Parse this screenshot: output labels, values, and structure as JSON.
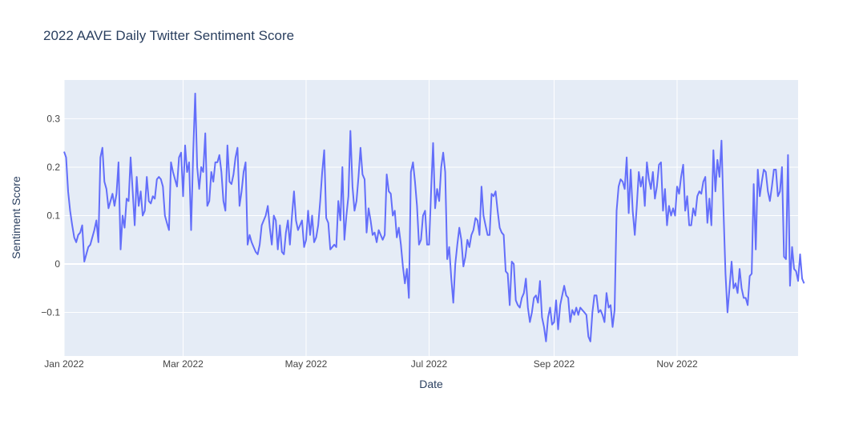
{
  "chart_data": {
    "type": "line",
    "title": "2022 AAVE Daily Twitter Sentiment Score",
    "xlabel": "Date",
    "ylabel": "Sentiment Score",
    "xlim": [
      "2022-01-01",
      "2022-12-31"
    ],
    "ylim": [
      -0.19,
      0.38
    ],
    "x_ticks": [
      {
        "date": "2022-01-01",
        "label": "Jan 2022"
      },
      {
        "date": "2022-03-01",
        "label": "Mar 2022"
      },
      {
        "date": "2022-05-01",
        "label": "May 2022"
      },
      {
        "date": "2022-07-01",
        "label": "Jul 2022"
      },
      {
        "date": "2022-09-01",
        "label": "Sep 2022"
      },
      {
        "date": "2022-11-01",
        "label": "Nov 2022"
      }
    ],
    "y_ticks": [
      {
        "value": -0.1,
        "label": "−0.1"
      },
      {
        "value": 0,
        "label": "0"
      },
      {
        "value": 0.1,
        "label": "0.1"
      },
      {
        "value": 0.2,
        "label": "0.2"
      },
      {
        "value": 0.3,
        "label": "0.3"
      }
    ],
    "grid": true,
    "colors": {
      "line": "#636efa",
      "plot_bg": "#e5ecf6",
      "grid": "#ffffff",
      "text": "#2a3f5f",
      "tick_text": "#444444"
    },
    "series": [
      {
        "name": "",
        "start_date": "2022-01-01",
        "frequency": "daily",
        "values": [
          0.232,
          0.22,
          0.15,
          0.11,
          0.08,
          0.055,
          0.045,
          0.06,
          0.065,
          0.08,
          0.005,
          0.02,
          0.035,
          0.04,
          0.055,
          0.07,
          0.09,
          0.045,
          0.22,
          0.24,
          0.17,
          0.155,
          0.115,
          0.13,
          0.145,
          0.12,
          0.145,
          0.21,
          0.03,
          0.1,
          0.075,
          0.135,
          0.13,
          0.22,
          0.15,
          0.08,
          0.18,
          0.12,
          0.15,
          0.1,
          0.11,
          0.18,
          0.13,
          0.125,
          0.14,
          0.135,
          0.175,
          0.18,
          0.175,
          0.16,
          0.1,
          0.085,
          0.07,
          0.21,
          0.19,
          0.175,
          0.16,
          0.22,
          0.23,
          0.14,
          0.245,
          0.19,
          0.21,
          0.07,
          0.23,
          0.352,
          0.2,
          0.155,
          0.2,
          0.19,
          0.27,
          0.12,
          0.13,
          0.19,
          0.17,
          0.21,
          0.21,
          0.225,
          0.19,
          0.13,
          0.11,
          0.245,
          0.17,
          0.165,
          0.185,
          0.22,
          0.24,
          0.12,
          0.15,
          0.19,
          0.21,
          0.04,
          0.06,
          0.045,
          0.035,
          0.025,
          0.02,
          0.04,
          0.08,
          0.09,
          0.1,
          0.12,
          0.075,
          0.04,
          0.1,
          0.09,
          0.03,
          0.08,
          0.025,
          0.02,
          0.065,
          0.09,
          0.04,
          0.1,
          0.15,
          0.09,
          0.07,
          0.08,
          0.09,
          0.035,
          0.05,
          0.11,
          0.06,
          0.1,
          0.045,
          0.055,
          0.08,
          0.13,
          0.19,
          0.235,
          0.095,
          0.085,
          0.03,
          0.035,
          0.04,
          0.035,
          0.13,
          0.09,
          0.2,
          0.05,
          0.1,
          0.14,
          0.275,
          0.16,
          0.11,
          0.13,
          0.18,
          0.24,
          0.185,
          0.175,
          0.065,
          0.115,
          0.09,
          0.06,
          0.065,
          0.045,
          0.07,
          0.06,
          0.05,
          0.06,
          0.185,
          0.15,
          0.145,
          0.1,
          0.11,
          0.055,
          0.075,
          0.04,
          -0.005,
          -0.04,
          -0.01,
          -0.07,
          0.19,
          0.21,
          0.17,
          0.12,
          0.04,
          0.05,
          0.1,
          0.11,
          0.04,
          0.04,
          0.15,
          0.25,
          0.115,
          0.155,
          0.13,
          0.2,
          0.23,
          0.19,
          0.01,
          0.035,
          -0.03,
          -0.08,
          0.0,
          0.04,
          0.075,
          0.05,
          -0.005,
          0.015,
          0.05,
          0.035,
          0.06,
          0.07,
          0.095,
          0.09,
          0.06,
          0.16,
          0.1,
          0.08,
          0.06,
          0.06,
          0.145,
          0.14,
          0.15,
          0.11,
          0.075,
          0.065,
          0.06,
          -0.015,
          -0.02,
          -0.085,
          0.005,
          0.0,
          -0.075,
          -0.085,
          -0.09,
          -0.07,
          -0.06,
          -0.03,
          -0.09,
          -0.12,
          -0.1,
          -0.07,
          -0.065,
          -0.08,
          -0.035,
          -0.11,
          -0.13,
          -0.16,
          -0.11,
          -0.09,
          -0.125,
          -0.12,
          -0.075,
          -0.135,
          -0.085,
          -0.065,
          -0.045,
          -0.065,
          -0.07,
          -0.12,
          -0.095,
          -0.105,
          -0.09,
          -0.105,
          -0.09,
          -0.095,
          -0.1,
          -0.105,
          -0.15,
          -0.16,
          -0.1,
          -0.065,
          -0.065,
          -0.1,
          -0.095,
          -0.105,
          -0.12,
          -0.06,
          -0.09,
          -0.085,
          -0.13,
          -0.095,
          0.11,
          0.16,
          0.175,
          0.17,
          0.155,
          0.22,
          0.105,
          0.195,
          0.11,
          0.06,
          0.12,
          0.19,
          0.16,
          0.18,
          0.12,
          0.21,
          0.175,
          0.155,
          0.19,
          0.135,
          0.16,
          0.205,
          0.21,
          0.11,
          0.155,
          0.08,
          0.12,
          0.1,
          0.115,
          0.1,
          0.16,
          0.145,
          0.18,
          0.205,
          0.11,
          0.14,
          0.08,
          0.08,
          0.115,
          0.1,
          0.14,
          0.15,
          0.145,
          0.17,
          0.18,
          0.085,
          0.135,
          0.08,
          0.235,
          0.15,
          0.215,
          0.18,
          0.255,
          0.11,
          -0.02,
          -0.1,
          -0.05,
          0.005,
          -0.05,
          -0.04,
          -0.06,
          -0.01,
          -0.05,
          -0.07,
          -0.07,
          -0.085,
          -0.025,
          -0.02,
          0.165,
          0.03,
          0.195,
          0.14,
          0.17,
          0.195,
          0.19,
          0.15,
          0.13,
          0.16,
          0.195,
          0.195,
          0.14,
          0.15,
          0.2,
          0.015,
          0.01,
          0.225,
          -0.045,
          0.035,
          -0.01,
          -0.015,
          -0.035,
          0.02,
          -0.03,
          -0.04
        ]
      }
    ]
  }
}
